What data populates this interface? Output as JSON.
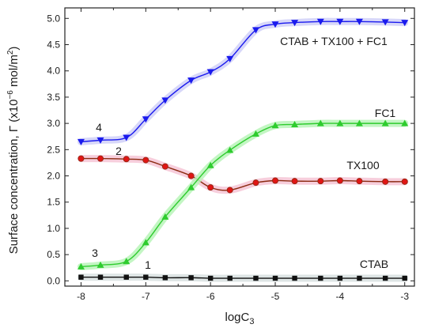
{
  "chart_data": {
    "type": "line",
    "xlabel": "logC",
    "xlabel_sub": "3",
    "ylabel": "Surface concentration, Γ (x10",
    "ylabel_exp": "−6",
    "ylabel_end": " mol/m",
    "ylabel_exp2": "2",
    "ylabel_close": ")",
    "xlim": [
      -8.25,
      -2.85
    ],
    "ylim": [
      -0.1,
      5.2
    ],
    "x_ticks": [
      "-8",
      "-7",
      "-6",
      "-5",
      "-4",
      "-3"
    ],
    "y_ticks": [
      "0.0",
      "0.5",
      "1.0",
      "1.5",
      "2.0",
      "2.5",
      "3.0",
      "3.5",
      "4.0",
      "4.5",
      "5.0"
    ],
    "grid": false,
    "series": [
      {
        "name": "CTAB",
        "number": "1",
        "color": "#111111",
        "highlight": "#d8e0e0",
        "marker": "square",
        "x": [
          -8,
          -7.7,
          -7.3,
          -7,
          -6.7,
          -6.3,
          -6,
          -5.7,
          -5.3,
          -5,
          -4.7,
          -4.3,
          -4,
          -3.7,
          -3.3,
          -3
        ],
        "y": [
          0.07,
          0.07,
          0.07,
          0.07,
          0.06,
          0.06,
          0.05,
          0.05,
          0.05,
          0.05,
          0.05,
          0.05,
          0.05,
          0.05,
          0.05,
          0.05
        ]
      },
      {
        "name": "TX100",
        "number": "2",
        "color": "#8b2a10",
        "highlight": "#f6c6d6",
        "marker": "circle",
        "x": [
          -8,
          -7.7,
          -7.3,
          -7,
          -6.7,
          -6.3,
          -6,
          -5.7,
          -5.3,
          -5,
          -4.7,
          -4.3,
          -4,
          -3.7,
          -3.3,
          -3
        ],
        "y": [
          2.33,
          2.33,
          2.32,
          2.3,
          2.18,
          2.0,
          1.78,
          1.73,
          1.87,
          1.91,
          1.9,
          1.9,
          1.91,
          1.9,
          1.89,
          1.89
        ]
      },
      {
        "name": "FC1",
        "number": "3",
        "color": "#2ecc2e",
        "highlight": "#b8f5b8",
        "marker": "triangle-up",
        "x": [
          -8,
          -7.7,
          -7.3,
          -7,
          -6.7,
          -6.3,
          -6,
          -5.7,
          -5.3,
          -5,
          -4.7,
          -4.3,
          -4,
          -3.7,
          -3.3,
          -3
        ],
        "y": [
          0.27,
          0.3,
          0.37,
          0.73,
          1.22,
          1.78,
          2.2,
          2.49,
          2.8,
          2.96,
          2.98,
          3.0,
          3.0,
          3.0,
          3.0,
          3.0
        ]
      },
      {
        "name": "CTAB + TX100 + FC1",
        "number": "4",
        "color": "#1a1aee",
        "highlight": "#d0d0f8",
        "marker": "triangle-down",
        "x": [
          -8,
          -7.7,
          -7.3,
          -7,
          -6.7,
          -6.3,
          -6,
          -5.7,
          -5.3,
          -5,
          -4.7,
          -4.3,
          -4,
          -3.7,
          -3.3,
          -3
        ],
        "y": [
          2.65,
          2.68,
          2.73,
          3.08,
          3.44,
          3.82,
          3.98,
          4.23,
          4.78,
          4.89,
          4.92,
          4.94,
          4.94,
          4.94,
          4.93,
          4.92
        ]
      }
    ]
  }
}
